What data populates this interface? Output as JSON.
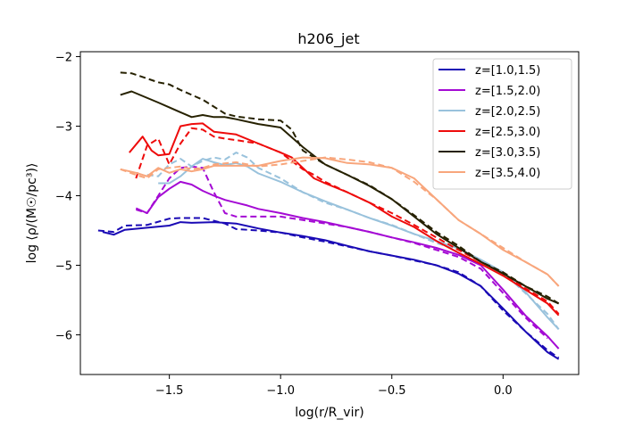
{
  "chart_data": {
    "type": "line",
    "title": "h206_jet",
    "xlabel": "log(r/R_vir)",
    "ylabel": "log ⟨ρ/(M☉/pc³)⟩",
    "xlim": [
      -1.9,
      0.34
    ],
    "ylim": [
      -6.57,
      -1.93
    ],
    "xticks": [
      {
        "value": -1.5,
        "label": "−1.5"
      },
      {
        "value": -1.0,
        "label": "−1.0"
      },
      {
        "value": -0.5,
        "label": "−0.5"
      },
      {
        "value": 0.0,
        "label": "0.0"
      }
    ],
    "yticks": [
      {
        "value": -2,
        "label": "−2"
      },
      {
        "value": -3,
        "label": "−3"
      },
      {
        "value": -4,
        "label": "−4"
      },
      {
        "value": -5,
        "label": "−5"
      },
      {
        "value": -6,
        "label": "−6"
      }
    ],
    "grid": false,
    "legend_position": "top-right",
    "series": [
      {
        "name": "z=[1.0,1.5)",
        "color": "#1a0ab5",
        "solid": {
          "x": [
            -1.8,
            -1.75,
            -1.7,
            -1.6,
            -1.5,
            -1.45,
            -1.4,
            -1.3,
            -1.2,
            -1.1,
            -1.0,
            -0.9,
            -0.8,
            -0.7,
            -0.6,
            -0.5,
            -0.4,
            -0.3,
            -0.2,
            -0.1,
            0.0,
            0.1,
            0.2,
            0.25
          ],
          "y": [
            -4.52,
            -4.56,
            -4.49,
            -4.46,
            -4.43,
            -4.38,
            -4.39,
            -4.38,
            -4.4,
            -4.47,
            -4.53,
            -4.58,
            -4.64,
            -4.72,
            -4.8,
            -4.86,
            -4.92,
            -5.0,
            -5.12,
            -5.3,
            -5.62,
            -5.95,
            -6.25,
            -6.35
          ]
        },
        "dashed": {
          "x": [
            -1.82,
            -1.75,
            -1.7,
            -1.6,
            -1.5,
            -1.45,
            -1.35,
            -1.25,
            -1.2,
            -1.1,
            -1.0,
            -0.9,
            -0.8,
            -0.7,
            -0.6,
            -0.5,
            -0.4,
            -0.3,
            -0.2,
            -0.1,
            0.0,
            0.1,
            0.2,
            0.25
          ],
          "y": [
            -4.5,
            -4.52,
            -4.43,
            -4.42,
            -4.33,
            -4.32,
            -4.32,
            -4.4,
            -4.48,
            -4.5,
            -4.53,
            -4.6,
            -4.66,
            -4.73,
            -4.8,
            -4.86,
            -4.93,
            -5.0,
            -5.1,
            -5.3,
            -5.65,
            -5.95,
            -6.22,
            -6.33
          ]
        }
      },
      {
        "name": "z=[1.5,2.0)",
        "color": "#a40ad4",
        "solid": {
          "x": [
            -1.65,
            -1.6,
            -1.55,
            -1.5,
            -1.45,
            -1.4,
            -1.35,
            -1.3,
            -1.25,
            -1.2,
            -1.15,
            -1.1,
            -1.0,
            -0.9,
            -0.8,
            -0.7,
            -0.6,
            -0.5,
            -0.4,
            -0.3,
            -0.2,
            -0.1,
            0.0,
            0.1,
            0.2,
            0.25
          ],
          "y": [
            -4.18,
            -4.25,
            -4.02,
            -3.9,
            -3.8,
            -3.84,
            -3.93,
            -4.0,
            -4.06,
            -4.1,
            -4.14,
            -4.19,
            -4.25,
            -4.32,
            -4.38,
            -4.45,
            -4.52,
            -4.6,
            -4.67,
            -4.75,
            -4.85,
            -5.0,
            -5.35,
            -5.72,
            -6.02,
            -6.2
          ]
        },
        "dashed": {
          "x": [
            -1.65,
            -1.6,
            -1.55,
            -1.5,
            -1.45,
            -1.4,
            -1.35,
            -1.3,
            -1.25,
            -1.2,
            -1.1,
            -1.0,
            -0.9,
            -0.8,
            -0.7,
            -0.6,
            -0.5,
            -0.4,
            -0.3,
            -0.2,
            -0.1,
            0.0,
            0.1,
            0.2
          ],
          "y": [
            -4.2,
            -4.25,
            -4.0,
            -3.75,
            -3.6,
            -3.58,
            -3.6,
            -3.95,
            -4.25,
            -4.3,
            -4.3,
            -4.3,
            -4.35,
            -4.4,
            -4.45,
            -4.52,
            -4.6,
            -4.68,
            -4.78,
            -4.88,
            -5.05,
            -5.4,
            -5.75,
            -6.05
          ]
        }
      },
      {
        "name": "z=[2.0,2.5)",
        "color": "#99c2dc",
        "solid": {
          "x": [
            -1.55,
            -1.5,
            -1.45,
            -1.4,
            -1.35,
            -1.3,
            -1.25,
            -1.2,
            -1.15,
            -1.1,
            -1.0,
            -0.9,
            -0.8,
            -0.7,
            -0.6,
            -0.5,
            -0.4,
            -0.3,
            -0.2,
            -0.1,
            0.0,
            0.1,
            0.2,
            0.25
          ],
          "y": [
            -3.82,
            -3.82,
            -3.72,
            -3.58,
            -3.47,
            -3.52,
            -3.56,
            -3.53,
            -3.58,
            -3.68,
            -3.8,
            -3.95,
            -4.08,
            -4.2,
            -4.32,
            -4.43,
            -4.55,
            -4.65,
            -4.76,
            -4.92,
            -5.1,
            -5.38,
            -5.75,
            -5.92
          ]
        },
        "dashed": {
          "x": [
            -1.6,
            -1.55,
            -1.5,
            -1.45,
            -1.4,
            -1.35,
            -1.3,
            -1.25,
            -1.2,
            -1.15,
            -1.1,
            -1.0,
            -0.9,
            -0.8,
            -0.7,
            -0.6,
            -0.5,
            -0.4,
            -0.3,
            -0.2,
            -0.1,
            0.0,
            0.1,
            0.2,
            0.25
          ],
          "y": [
            -3.7,
            -3.72,
            -3.55,
            -3.47,
            -3.58,
            -3.5,
            -3.45,
            -3.48,
            -3.38,
            -3.45,
            -3.6,
            -3.75,
            -3.95,
            -4.1,
            -4.2,
            -4.32,
            -4.42,
            -4.55,
            -4.68,
            -4.78,
            -4.93,
            -5.1,
            -5.4,
            -5.7,
            -5.92
          ]
        }
      },
      {
        "name": "z=[2.5,3.0)",
        "color": "#ee0b0b",
        "solid": {
          "x": [
            -1.68,
            -1.62,
            -1.58,
            -1.55,
            -1.5,
            -1.45,
            -1.4,
            -1.35,
            -1.3,
            -1.25,
            -1.2,
            -1.1,
            -1.0,
            -0.95,
            -0.9,
            -0.85,
            -0.8,
            -0.7,
            -0.6,
            -0.5,
            -0.4,
            -0.3,
            -0.2,
            -0.1,
            0.0,
            0.1,
            0.2,
            0.25
          ],
          "y": [
            -3.38,
            -3.15,
            -3.35,
            -3.42,
            -3.4,
            -3.0,
            -2.97,
            -2.96,
            -3.08,
            -3.1,
            -3.12,
            -3.25,
            -3.38,
            -3.45,
            -3.6,
            -3.75,
            -3.82,
            -3.95,
            -4.1,
            -4.3,
            -4.45,
            -4.65,
            -4.82,
            -4.98,
            -5.15,
            -5.35,
            -5.55,
            -5.72
          ]
        },
        "dashed": {
          "x": [
            -1.65,
            -1.6,
            -1.55,
            -1.5,
            -1.45,
            -1.4,
            -1.35,
            -1.3,
            -1.25,
            -1.2,
            -1.1,
            -1.0,
            -0.95,
            -0.9,
            -0.85,
            -0.8,
            -0.7,
            -0.6,
            -0.5,
            -0.4,
            -0.3,
            -0.2,
            -0.1,
            0.0,
            0.1,
            0.2,
            0.25
          ],
          "y": [
            -3.75,
            -3.28,
            -3.18,
            -3.55,
            -3.25,
            -3.03,
            -3.05,
            -3.15,
            -3.18,
            -3.2,
            -3.25,
            -3.38,
            -3.5,
            -3.62,
            -3.7,
            -3.8,
            -3.95,
            -4.1,
            -4.25,
            -4.42,
            -4.6,
            -4.78,
            -4.95,
            -5.12,
            -5.33,
            -5.52,
            -5.7
          ]
        }
      },
      {
        "name": "z=[3.0,3.5)",
        "color": "#262100",
        "solid": {
          "x": [
            -1.72,
            -1.67,
            -1.55,
            -1.5,
            -1.45,
            -1.4,
            -1.35,
            -1.3,
            -1.25,
            -1.2,
            -1.1,
            -1.0,
            -0.9,
            -0.8,
            -0.7,
            -0.6,
            -0.5,
            -0.4,
            -0.3,
            -0.2,
            -0.1,
            0.0,
            0.1,
            0.2,
            0.25
          ],
          "y": [
            -2.55,
            -2.5,
            -2.66,
            -2.73,
            -2.8,
            -2.87,
            -2.84,
            -2.87,
            -2.87,
            -2.9,
            -2.97,
            -3.02,
            -3.3,
            -3.55,
            -3.7,
            -3.86,
            -4.05,
            -4.3,
            -4.55,
            -4.75,
            -4.95,
            -5.12,
            -5.3,
            -5.48,
            -5.55
          ]
        },
        "dashed": {
          "x": [
            -1.72,
            -1.67,
            -1.55,
            -1.5,
            -1.45,
            -1.4,
            -1.35,
            -1.3,
            -1.25,
            -1.2,
            -1.1,
            -1.0,
            -0.95,
            -0.9,
            -0.8,
            -0.7,
            -0.6,
            -0.5,
            -0.4,
            -0.3,
            -0.2,
            -0.1,
            0.0,
            0.1,
            0.2,
            0.25
          ],
          "y": [
            -2.23,
            -2.24,
            -2.37,
            -2.4,
            -2.48,
            -2.55,
            -2.62,
            -2.72,
            -2.82,
            -2.86,
            -2.9,
            -2.92,
            -3.05,
            -3.35,
            -3.55,
            -3.7,
            -3.85,
            -4.05,
            -4.28,
            -4.52,
            -4.72,
            -4.95,
            -5.1,
            -5.3,
            -5.45,
            -5.55
          ]
        }
      },
      {
        "name": "z=[3.5,4.0)",
        "color": "#f8a67c",
        "solid": {
          "x": [
            -1.72,
            -1.65,
            -1.6,
            -1.55,
            -1.5,
            -1.45,
            -1.4,
            -1.35,
            -1.3,
            -1.2,
            -1.1,
            -1.0,
            -0.9,
            -0.8,
            -0.7,
            -0.6,
            -0.5,
            -0.4,
            -0.3,
            -0.2,
            -0.1,
            0.0,
            0.1,
            0.2,
            0.25
          ],
          "y": [
            -3.62,
            -3.67,
            -3.72,
            -3.6,
            -3.67,
            -3.62,
            -3.65,
            -3.62,
            -3.57,
            -3.57,
            -3.57,
            -3.5,
            -3.45,
            -3.46,
            -3.53,
            -3.55,
            -3.6,
            -3.75,
            -4.05,
            -4.35,
            -4.55,
            -4.78,
            -4.95,
            -5.13,
            -5.3
          ]
        },
        "dashed": {
          "x": [
            -1.72,
            -1.65,
            -1.6,
            -1.55,
            -1.5,
            -1.45,
            -1.4,
            -1.35,
            -1.3,
            -1.2,
            -1.1,
            -1.0,
            -0.9,
            -0.8,
            -0.7,
            -0.6,
            -0.5,
            -0.4,
            -0.3,
            -0.2,
            -0.1,
            0.0,
            0.1,
            0.2,
            0.25
          ],
          "y": [
            -3.62,
            -3.7,
            -3.75,
            -3.62,
            -3.6,
            -3.58,
            -3.62,
            -3.6,
            -3.55,
            -3.52,
            -3.58,
            -3.55,
            -3.5,
            -3.45,
            -3.48,
            -3.52,
            -3.6,
            -3.8,
            -4.05,
            -4.35,
            -4.55,
            -4.75,
            -4.95,
            -5.13,
            -5.3
          ]
        }
      }
    ]
  }
}
